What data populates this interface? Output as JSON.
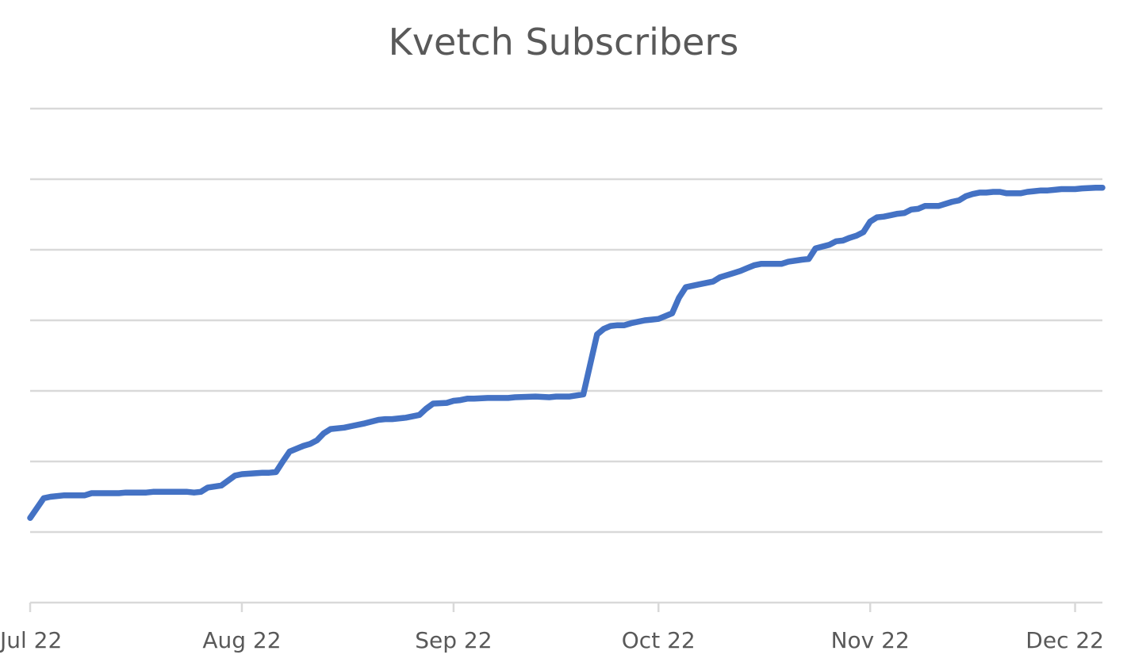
{
  "chart_data": {
    "type": "line",
    "title": "Kvetch Subscribers",
    "xlabel": "",
    "ylabel": "",
    "x_axis": {
      "type": "date",
      "min": "2022-07-01",
      "max": "2022-12-05",
      "ticks": [
        {
          "date": "2022-07-01",
          "label": "Jul 22"
        },
        {
          "date": "2022-08-01",
          "label": "Aug 22"
        },
        {
          "date": "2022-09-01",
          "label": "Sep 22"
        },
        {
          "date": "2022-10-01",
          "label": "Oct 22"
        },
        {
          "date": "2022-11-01",
          "label": "Nov 22"
        },
        {
          "date": "2022-12-01",
          "label": "Dec 22"
        }
      ]
    },
    "y_axis": {
      "min": 0,
      "max": 7,
      "gridlines": [
        1,
        2,
        3,
        4,
        5,
        6,
        7
      ],
      "tick_labels_shown": false,
      "unit_note": ""
    },
    "grid": true,
    "legend": "none",
    "colors": {
      "series": "#4472c4",
      "grid": "#d9d9d9",
      "text": "#595959"
    },
    "series": [
      {
        "name": "",
        "x": [
          "2022-07-01",
          "2022-07-03",
          "2022-07-04",
          "2022-07-06",
          "2022-07-09",
          "2022-07-10",
          "2022-07-14",
          "2022-07-15",
          "2022-07-18",
          "2022-07-19",
          "2022-07-24",
          "2022-07-25",
          "2022-07-26",
          "2022-07-27",
          "2022-07-29",
          "2022-07-31",
          "2022-08-01",
          "2022-08-04",
          "2022-08-05",
          "2022-08-06",
          "2022-08-07",
          "2022-08-08",
          "2022-08-10",
          "2022-08-11",
          "2022-08-12",
          "2022-08-13",
          "2022-08-14",
          "2022-08-16",
          "2022-08-17",
          "2022-08-19",
          "2022-08-21",
          "2022-08-22",
          "2022-08-23",
          "2022-08-25",
          "2022-08-27",
          "2022-08-28",
          "2022-08-29",
          "2022-08-31",
          "2022-09-01",
          "2022-09-02",
          "2022-09-03",
          "2022-09-04",
          "2022-09-06",
          "2022-09-07",
          "2022-09-09",
          "2022-09-10",
          "2022-09-13",
          "2022-09-15",
          "2022-09-16",
          "2022-09-18",
          "2022-09-20",
          "2022-09-22",
          "2022-09-23",
          "2022-09-24",
          "2022-09-25",
          "2022-09-26",
          "2022-09-27",
          "2022-09-29",
          "2022-09-30",
          "2022-10-01",
          "2022-10-03",
          "2022-10-04",
          "2022-10-05",
          "2022-10-07",
          "2022-10-08",
          "2022-10-09",
          "2022-10-10",
          "2022-10-12",
          "2022-10-13",
          "2022-10-14",
          "2022-10-15",
          "2022-10-16",
          "2022-10-17",
          "2022-10-19",
          "2022-10-20",
          "2022-10-22",
          "2022-10-23",
          "2022-10-24",
          "2022-10-26",
          "2022-10-27",
          "2022-10-28",
          "2022-10-29",
          "2022-10-30",
          "2022-10-31",
          "2022-11-01",
          "2022-11-02",
          "2022-11-03",
          "2022-11-04",
          "2022-11-05",
          "2022-11-06",
          "2022-11-07",
          "2022-11-08",
          "2022-11-09",
          "2022-11-11",
          "2022-11-13",
          "2022-11-14",
          "2022-11-15",
          "2022-11-16",
          "2022-11-17",
          "2022-11-18",
          "2022-11-19",
          "2022-11-20",
          "2022-11-21",
          "2022-11-23",
          "2022-11-24",
          "2022-11-25",
          "2022-11-26",
          "2022-11-27",
          "2022-11-28",
          "2022-11-29",
          "2022-11-30",
          "2022-12-01",
          "2022-12-02",
          "2022-12-04",
          "2022-12-05"
        ],
        "y": [
          1.2,
          1.48,
          1.5,
          1.52,
          1.52,
          1.55,
          1.55,
          1.56,
          1.56,
          1.57,
          1.57,
          1.56,
          1.57,
          1.63,
          1.66,
          1.8,
          1.82,
          1.84,
          1.84,
          1.85,
          2.0,
          2.14,
          2.22,
          2.25,
          2.3,
          2.4,
          2.46,
          2.48,
          2.5,
          2.54,
          2.59,
          2.6,
          2.6,
          2.62,
          2.66,
          2.75,
          2.82,
          2.83,
          2.86,
          2.87,
          2.89,
          2.89,
          2.9,
          2.9,
          2.9,
          2.91,
          2.92,
          2.91,
          2.92,
          2.92,
          2.95,
          3.8,
          3.88,
          3.92,
          3.93,
          3.93,
          3.96,
          4.0,
          4.01,
          4.02,
          4.1,
          4.32,
          4.47,
          4.51,
          4.53,
          4.55,
          4.61,
          4.67,
          4.7,
          4.74,
          4.78,
          4.8,
          4.8,
          4.8,
          4.83,
          4.86,
          4.87,
          5.02,
          5.07,
          5.12,
          5.13,
          5.17,
          5.2,
          5.25,
          5.4,
          5.46,
          5.47,
          5.49,
          5.51,
          5.52,
          5.57,
          5.58,
          5.62,
          5.62,
          5.68,
          5.7,
          5.76,
          5.79,
          5.81,
          5.81,
          5.82,
          5.82,
          5.8,
          5.8,
          5.82,
          5.83,
          5.84,
          5.84,
          5.85,
          5.86,
          5.86,
          5.86,
          5.87,
          5.88,
          5.88
        ]
      }
    ]
  }
}
